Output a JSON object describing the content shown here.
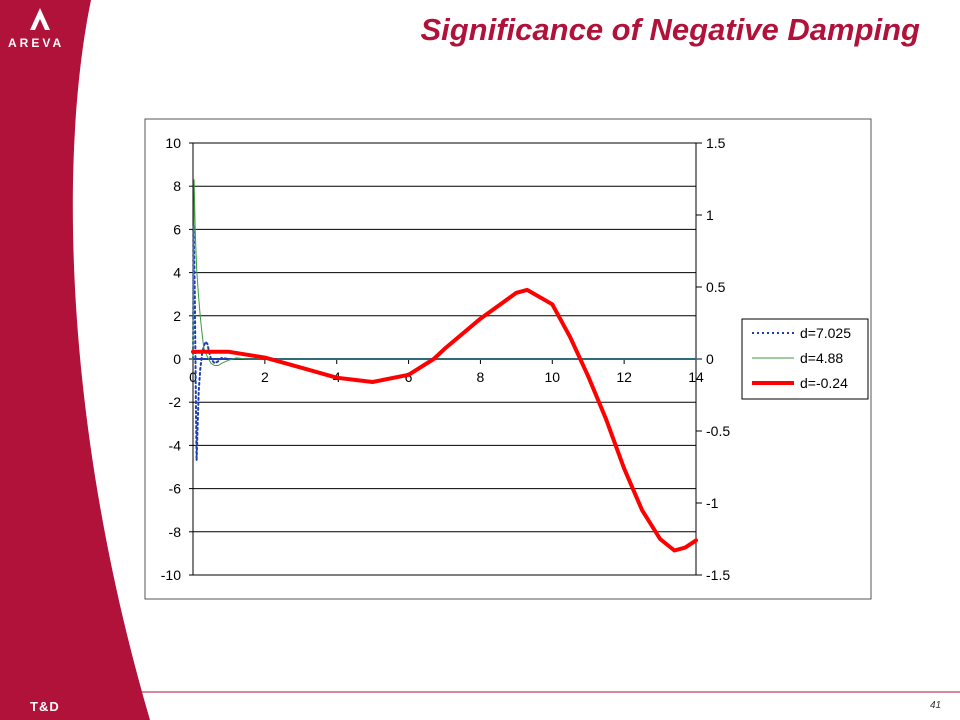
{
  "slide": {
    "title": "Significance of Negative Damping",
    "brand": "AREVA",
    "division": "T&D",
    "page_number": "41"
  },
  "colors": {
    "brand_red": "#b0123a",
    "series_1": "#1f3fb0",
    "series_2": "#3c9a3c",
    "series_3": "#ff0000"
  },
  "chart_data": {
    "type": "line",
    "title": "",
    "xlabel": "",
    "ylabel": "",
    "x_ticks": [
      "0",
      "2",
      "4",
      "6",
      "8",
      "10",
      "12",
      "14"
    ],
    "xlim": [
      0,
      14
    ],
    "y_left_ticks": [
      "10",
      "8",
      "6",
      "4",
      "2",
      "0",
      "-2",
      "-4",
      "-6",
      "-8",
      "-10"
    ],
    "ylim_left": [
      -10,
      10
    ],
    "y_right_ticks": [
      "1.5",
      "1",
      "0.5",
      "0",
      "-0.5",
      "-1",
      "-1.5"
    ],
    "ylim_right": [
      -1.5,
      1.5
    ],
    "grid": "horizontal",
    "legend_position": "right",
    "series": [
      {
        "name": "d=7.025",
        "axis": "left",
        "style": "dotted",
        "x": [
          0,
          0.02,
          0.05,
          0.08,
          0.1,
          0.13,
          0.16,
          0.2,
          0.25,
          0.3,
          0.35,
          0.4,
          0.45,
          0.5,
          0.6,
          0.7,
          0.8,
          1.0,
          1.5,
          2,
          14
        ],
        "y": [
          0,
          6.2,
          3.0,
          -2.0,
          -4.7,
          -3.0,
          -1.5,
          -0.5,
          0.2,
          0.6,
          0.8,
          0.7,
          0.3,
          0.0,
          -0.2,
          -0.1,
          0.05,
          0.0,
          0.0,
          0.0,
          0.0
        ]
      },
      {
        "name": "d=4.88",
        "axis": "left",
        "style": "solid-thin",
        "x": [
          0,
          0.03,
          0.06,
          0.1,
          0.15,
          0.2,
          0.25,
          0.3,
          0.4,
          0.5,
          0.6,
          0.7,
          0.8,
          1.0,
          1.2,
          1.5,
          2,
          14
        ],
        "y": [
          0,
          8.3,
          6.0,
          4.2,
          3.0,
          2.0,
          1.2,
          0.5,
          0.1,
          -0.2,
          -0.3,
          -0.3,
          -0.2,
          -0.05,
          0.05,
          0.0,
          0.0,
          0.0
        ]
      },
      {
        "name": "d=-0.24",
        "axis": "right",
        "style": "solid-thick",
        "x": [
          0,
          0.5,
          1,
          1.5,
          2,
          3,
          4,
          5,
          6,
          6.7,
          7,
          8,
          9,
          9.3,
          10,
          10.5,
          11,
          11.5,
          12,
          12.5,
          13,
          13.4,
          13.7,
          14
        ],
        "y": [
          0.05,
          0.05,
          0.05,
          0.03,
          0.01,
          -0.06,
          -0.13,
          -0.16,
          -0.11,
          0.0,
          0.07,
          0.28,
          0.46,
          0.48,
          0.38,
          0.15,
          -0.12,
          -0.42,
          -0.76,
          -1.05,
          -1.25,
          -1.33,
          -1.31,
          -1.26
        ]
      }
    ]
  }
}
